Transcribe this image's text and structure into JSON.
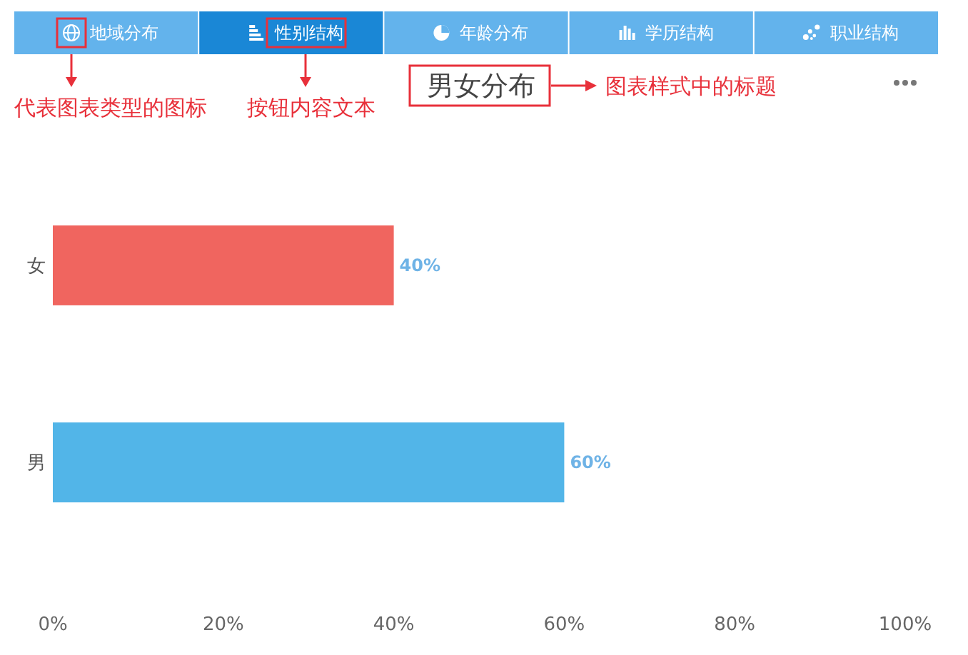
{
  "chart_data": {
    "type": "bar",
    "orientation": "horizontal",
    "title": "男女分布",
    "categories": [
      "女",
      "男"
    ],
    "values": [
      40,
      60
    ],
    "colors": [
      "#f0655f",
      "#52b5e8"
    ],
    "value_labels": [
      "40%",
      "60%"
    ],
    "xlim": [
      0,
      100
    ],
    "xticks": [
      {
        "value": 0,
        "label": "0%"
      },
      {
        "value": 20,
        "label": "20%"
      },
      {
        "value": 40,
        "label": "40%"
      },
      {
        "value": 60,
        "label": "60%"
      },
      {
        "value": 80,
        "label": "80%"
      },
      {
        "value": 100,
        "label": "100%"
      }
    ],
    "grid": false,
    "annotations": [
      "地域分布",
      "性别结构",
      "年龄分布",
      "学历结构",
      "职业结构",
      "代表图表类型的图标",
      "按钮内容文本",
      "图表样式中的标题"
    ]
  }
}
